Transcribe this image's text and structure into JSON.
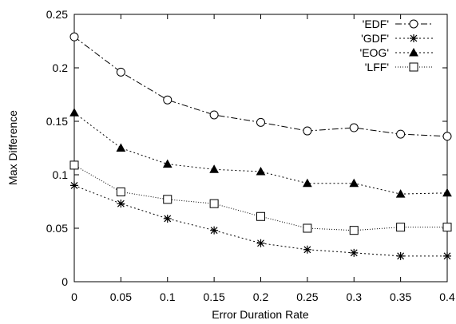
{
  "chart_data": {
    "type": "line",
    "xlabel": "Error Duration Rate",
    "ylabel": "Max Difference",
    "xlim": [
      0,
      0.4
    ],
    "ylim": [
      0,
      0.25
    ],
    "x_ticks": [
      "0",
      "0.05",
      "0.1",
      "0.15",
      "0.2",
      "0.25",
      "0.3",
      "0.35",
      "0.4"
    ],
    "y_ticks": [
      "0",
      "0.05",
      "0.1",
      "0.15",
      "0.2",
      "0.25"
    ],
    "grid": false,
    "legend_position": "top-right",
    "x": [
      0,
      0.05,
      0.1,
      0.15,
      0.2,
      0.25,
      0.3,
      0.35,
      0.4
    ],
    "series": [
      {
        "name": "'EDF'",
        "marker": "circle",
        "dash": "8,3,2,3",
        "values": [
          0.229,
          0.196,
          0.17,
          0.156,
          0.149,
          0.141,
          0.144,
          0.138,
          0.136
        ]
      },
      {
        "name": "'GDF'",
        "marker": "star",
        "dash": "2,3",
        "values": [
          0.09,
          0.073,
          0.059,
          0.048,
          0.036,
          0.03,
          0.027,
          0.024,
          0.024
        ]
      },
      {
        "name": "'EOG'",
        "marker": "triangle",
        "dash": "2,3",
        "values": [
          0.158,
          0.125,
          0.11,
          0.105,
          0.103,
          0.092,
          0.092,
          0.082,
          0.083
        ]
      },
      {
        "name": "'LFF'",
        "marker": "square",
        "dash": "1,2",
        "values": [
          0.109,
          0.084,
          0.077,
          0.073,
          0.061,
          0.05,
          0.048,
          0.051,
          0.051
        ]
      }
    ]
  }
}
